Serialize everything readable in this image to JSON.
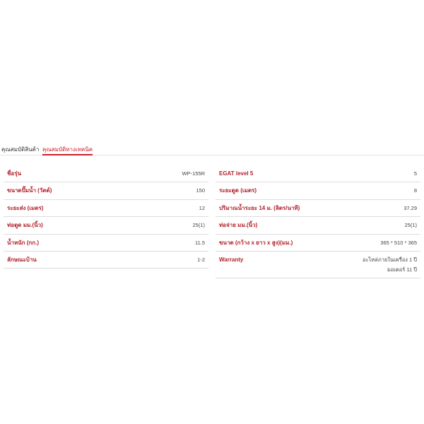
{
  "tabs": [
    {
      "label": "คุณสมบัติสินค้า",
      "active": false
    },
    {
      "label": "คุณสมบัติทางเทคนิค",
      "active": true
    }
  ],
  "colors": {
    "accent": "#c8202a"
  },
  "left_specs": [
    {
      "label": "ชื่อรุ่น",
      "value": "WP-155R"
    },
    {
      "label": "ขนาดปั๊มน้ำ (วัตต์)",
      "value": "150"
    },
    {
      "label": "ระยะส่ง (เมตร)",
      "value": "12"
    },
    {
      "label": "ท่อดูด มม.(นิ้ว)",
      "value": "25(1)"
    },
    {
      "label": "น้ำหนัก (กก.)",
      "value": "11.5"
    },
    {
      "label": "ลักษณะบ้าน",
      "value": "1-2"
    }
  ],
  "right_specs": [
    {
      "label": "EGAT level 5",
      "value": "5"
    },
    {
      "label": "ระยะดูด (เมตร)",
      "value": "8"
    },
    {
      "label": "ปริมาณน้ำระยะ 14 ม. (ลิตร/นาที)",
      "value": "37.29"
    },
    {
      "label": "ท่อจ่าย มม.(นิ้ว)",
      "value": "25(1)"
    },
    {
      "label": "ขนาด (กว้าง x ยาว x สูง)(มม.)",
      "value": "365 * 510 * 365"
    }
  ],
  "warranty": {
    "label": "Warranty",
    "lines": [
      "อะไหล่ภายในเครื่อง 1 ปี",
      "มอเตอร์ 11 ปี"
    ]
  }
}
